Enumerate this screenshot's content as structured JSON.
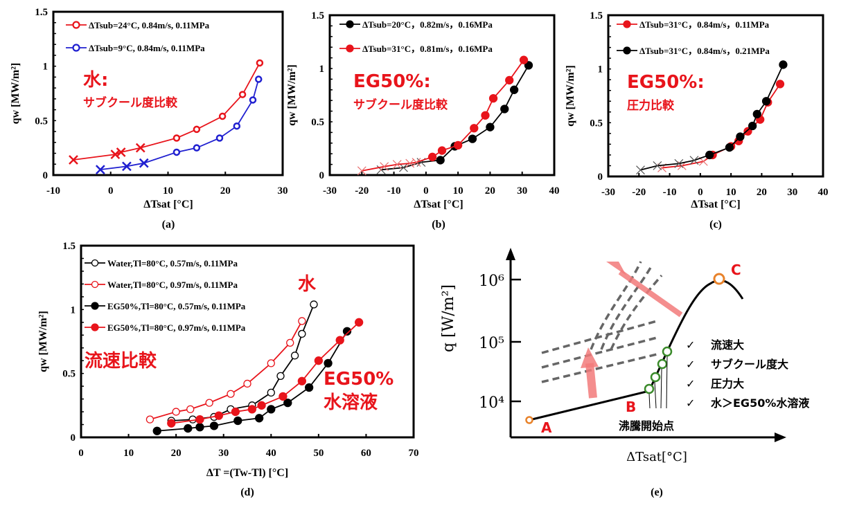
{
  "chart_data": [
    {
      "id": "a",
      "type": "line",
      "panel_label": "(a)",
      "xlabel": "ΔTsat [°C]",
      "ylabel": "qw [MW/m²]",
      "xlim": [
        -10,
        30
      ],
      "ylim": [
        0,
        1.5
      ],
      "xticks": [
        -10,
        0,
        10,
        20,
        30
      ],
      "yticks": [
        0,
        0.5,
        1,
        1.5
      ],
      "ytick_labels": [
        "0",
        "0.5",
        "1",
        "1.5"
      ],
      "legend_position": "top-left",
      "annotations": [
        {
          "text": "水:",
          "style": "big"
        },
        {
          "text": "サブクール度比較",
          "style": "small"
        }
      ],
      "series": [
        {
          "name": "ΔTsub=24°C, 0.84m/s, 0.11MPa",
          "color": "#e8141b",
          "marker": "open-circle",
          "x_pre": [
            -6.5,
            0.8,
            1.8,
            5.2
          ],
          "y_pre": [
            0.14,
            0.19,
            0.21,
            0.25
          ],
          "x": [
            11.5,
            15,
            19.5,
            23,
            26
          ],
          "y": [
            0.34,
            0.42,
            0.54,
            0.74,
            1.03
          ]
        },
        {
          "name": "ΔTsub=9°C, 0.84m/s, 0.11MPa",
          "color": "#1f1fd0",
          "marker": "open-circle",
          "x_pre": [
            -1.8,
            2.8,
            5.8
          ],
          "y_pre": [
            0.05,
            0.08,
            0.11
          ],
          "x": [
            11.5,
            15,
            19,
            22,
            24.8,
            25.8
          ],
          "y": [
            0.21,
            0.25,
            0.34,
            0.45,
            0.69,
            0.88
          ]
        }
      ]
    },
    {
      "id": "b",
      "type": "line",
      "panel_label": "(b)",
      "xlabel": "ΔTsat [°C]",
      "ylabel": "qw [MW/m²]",
      "xlim": [
        -30,
        40
      ],
      "ylim": [
        0,
        1.5
      ],
      "xticks": [
        -30,
        -20,
        -10,
        0,
        10,
        20,
        30,
        40
      ],
      "yticks": [
        0,
        0.5,
        1,
        1.5
      ],
      "ytick_labels": [
        "0",
        "0.5",
        "1",
        "1.5"
      ],
      "legend_position": "top-left",
      "annotations": [
        {
          "text": "EG50%:",
          "style": "big"
        },
        {
          "text": "サブクール度比較",
          "style": "small"
        }
      ],
      "series": [
        {
          "name": "ΔTsub=20°C，0.82m/s，0.16MPa",
          "color": "#000000",
          "marker": "filled-circle",
          "x_pre": [
            -14,
            -7,
            -1.5
          ],
          "y_pre": [
            0.05,
            0.07,
            0.12
          ],
          "x": [
            4.5,
            9,
            14.5,
            20,
            24.5,
            27.5,
            32
          ],
          "y": [
            0.14,
            0.27,
            0.34,
            0.45,
            0.62,
            0.8,
            1.03
          ]
        },
        {
          "name": "ΔTsub=31°C，0.81m/s，0.16MPa",
          "color": "#e8141b",
          "marker": "filled-circle",
          "x_pre": [
            -20,
            -13,
            -9,
            -5,
            -3
          ],
          "y_pre": [
            0.04,
            0.08,
            0.1,
            0.11,
            0.12
          ],
          "x": [
            2,
            5,
            10,
            15,
            18.5,
            21,
            26,
            30.5
          ],
          "y": [
            0.17,
            0.23,
            0.28,
            0.44,
            0.56,
            0.72,
            0.89,
            1.08
          ]
        }
      ]
    },
    {
      "id": "c",
      "type": "line",
      "panel_label": "(c)",
      "xlabel": "ΔTsat [°C]",
      "ylabel": "qw [MW/m²]",
      "xlim": [
        -30,
        40
      ],
      "ylim": [
        0,
        1.5
      ],
      "xticks": [
        -30,
        -20,
        -10,
        0,
        10,
        20,
        30,
        40
      ],
      "yticks": [
        0,
        0.5,
        1,
        1.5
      ],
      "ytick_labels": [
        "0",
        "0.5",
        "1",
        "1.5"
      ],
      "legend_position": "top-left",
      "annotations": [
        {
          "text": "EG50%:",
          "style": "big"
        },
        {
          "text": "圧力比較",
          "style": "small"
        }
      ],
      "series": [
        {
          "name": "ΔTsub=31°C，0.84m/s，0.11MPa",
          "color": "#e8141b",
          "marker": "filled-circle",
          "x_pre": [
            -12.5,
            -6,
            1
          ],
          "y_pre": [
            0.08,
            0.1,
            0.14
          ],
          "x": [
            4,
            10,
            12.5,
            15.5,
            19.5,
            22,
            26
          ],
          "y": [
            0.2,
            0.28,
            0.33,
            0.42,
            0.53,
            0.69,
            0.86
          ]
        },
        {
          "name": "ΔTsub=31°C，0.84m/s，0.21MPa",
          "color": "#000000",
          "marker": "filled-circle",
          "x_pre": [
            -19.5,
            -14,
            -7,
            -2
          ],
          "y_pre": [
            0.06,
            0.1,
            0.12,
            0.15
          ],
          "x": [
            3,
            9.5,
            13,
            17,
            18.5,
            21.5,
            27
          ],
          "y": [
            0.2,
            0.27,
            0.37,
            0.47,
            0.58,
            0.7,
            1.04
          ]
        }
      ]
    },
    {
      "id": "d",
      "type": "line",
      "panel_label": "(d)",
      "xlabel": "ΔT =(Tw-Tl) [°C]",
      "ylabel": "qw [MW/m²]",
      "xlim": [
        0,
        70
      ],
      "ylim": [
        0,
        1.5
      ],
      "xticks": [
        0,
        10,
        20,
        30,
        40,
        50,
        60,
        70
      ],
      "yticks": [
        0,
        0.5,
        1,
        1.5
      ],
      "ytick_labels": [
        "0",
        "0.5",
        "1",
        "1.5"
      ],
      "legend_position": "top-left",
      "annotations": [
        {
          "text": "水",
          "style": "big"
        },
        {
          "text": "流速比較",
          "style": "big"
        },
        {
          "text": "EG50%",
          "style": "big"
        },
        {
          "text": "水溶液",
          "style": "big"
        }
      ],
      "series": [
        {
          "name": "Water,Tl=80°C, 0.57m/s, 0.11MPa",
          "color": "#000000",
          "marker": "open-circle",
          "x": [
            19,
            23.5,
            28,
            31.5,
            36,
            40,
            42,
            45,
            46.5,
            49
          ],
          "y": [
            0.13,
            0.14,
            0.16,
            0.22,
            0.25,
            0.35,
            0.48,
            0.64,
            0.81,
            1.04
          ]
        },
        {
          "name": "Water,Tl=80°C, 0.97m/s, 0.11MPa",
          "color": "#e8141b",
          "marker": "open-circle",
          "x": [
            14.5,
            20,
            23,
            27,
            31.5,
            35,
            40,
            44,
            46.5
          ],
          "y": [
            0.14,
            0.2,
            0.22,
            0.27,
            0.34,
            0.42,
            0.58,
            0.74,
            0.91
          ]
        },
        {
          "name": "EG50%,Tl=80°C, 0.57m/s, 0.11MPa",
          "color": "#000000",
          "marker": "filled-circle",
          "x": [
            16,
            22.5,
            25,
            28,
            33,
            37.5,
            40,
            43.5,
            48,
            52,
            56
          ],
          "y": [
            0.05,
            0.07,
            0.08,
            0.09,
            0.13,
            0.15,
            0.22,
            0.27,
            0.39,
            0.58,
            0.83
          ]
        },
        {
          "name": "EG50%,Tl=80°C, 0.97m/s, 0.11MPa",
          "color": "#e8141b",
          "marker": "filled-circle",
          "x": [
            19,
            25,
            29,
            32.5,
            36,
            38,
            42.5,
            46.5,
            50,
            54.5,
            58.5
          ],
          "y": [
            0.11,
            0.14,
            0.17,
            0.2,
            0.22,
            0.25,
            0.32,
            0.44,
            0.6,
            0.76,
            0.9
          ]
        }
      ]
    },
    {
      "id": "e",
      "type": "line",
      "panel_label": "(e)",
      "title": "",
      "xlabel": "ΔTsat[°C]",
      "ylabel": "q [W/m²]",
      "y_scale": "log",
      "ytick_labels": [
        "10⁴",
        "10⁵",
        "10⁶"
      ],
      "points": {
        "A": "A",
        "B": "B",
        "C": "C"
      },
      "onset_label": "沸騰開始点",
      "checklist": [
        "流速大",
        "サブクール度大",
        "圧力大",
        "水＞EG50%水溶液"
      ],
      "check_mark": "✓"
    }
  ]
}
